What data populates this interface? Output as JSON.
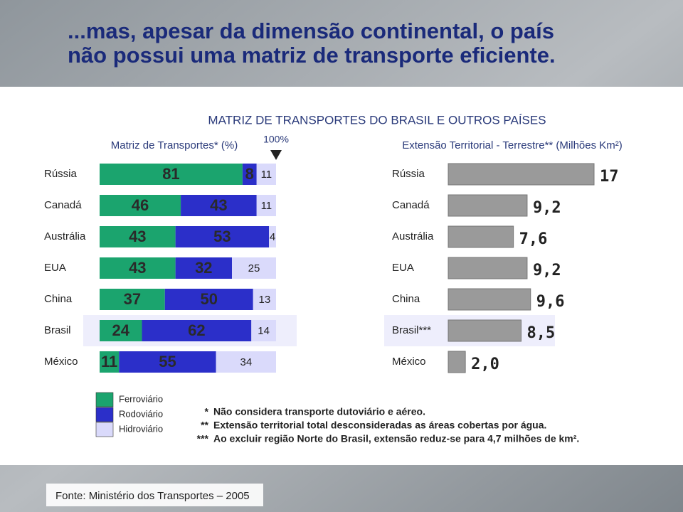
{
  "title": [
    "...mas, apesar da dimensão continental, o país",
    "não possui uma matriz de transporte eficiente."
  ],
  "heading": "MATRIZ DE TRANSPORTES DO BRASIL E OUTROS PAÍSES",
  "chart_data": [
    {
      "type": "bar",
      "orientation": "horizontal",
      "stacked": true,
      "subtitle": "Matriz de Transportes* (%)",
      "annotation": "100%",
      "categories": [
        "Rússia",
        "Canadá",
        "Austrália",
        "EUA",
        "China",
        "Brasil",
        "México"
      ],
      "xlim": [
        0,
        100
      ],
      "series": [
        {
          "name": "Ferroviário",
          "color": "#1ba46e",
          "values": [
            81,
            46,
            43,
            43,
            37,
            24,
            11
          ]
        },
        {
          "name": "Rodoviário",
          "color": "#2b2fc9",
          "values": [
            8,
            43,
            53,
            32,
            50,
            62,
            55
          ]
        },
        {
          "name": "Hidroviário",
          "color": "#dadafb",
          "values": [
            11,
            11,
            4,
            25,
            13,
            14,
            34
          ]
        }
      ]
    },
    {
      "type": "bar",
      "orientation": "horizontal",
      "subtitle": "Extensão Territorial - Terrestre** (Milhões Km²)",
      "categories": [
        "Rússia",
        "Canadá",
        "Austrália",
        "EUA",
        "China",
        "Brasil***",
        "México"
      ],
      "color": "#9a9a9a",
      "values": [
        17,
        9.2,
        7.6,
        9.2,
        9.6,
        8.5,
        2.0
      ],
      "value_labels": [
        "17",
        "9,2",
        "7,6",
        "9,2",
        "9,6",
        "8,5",
        "2,0"
      ]
    }
  ],
  "footnotes": [
    {
      "marker": "*",
      "text": "Não considera transporte dutoviário e aéreo."
    },
    {
      "marker": "**",
      "text": "Extensão territorial total desconsideradas as áreas cobertas por água."
    },
    {
      "marker": "***",
      "text": "Ao excluir região Norte do Brasil, extensão reduz-se para 4,7 milhões de km²."
    }
  ],
  "source": "Fonte: Ministério dos Transportes – 2005"
}
